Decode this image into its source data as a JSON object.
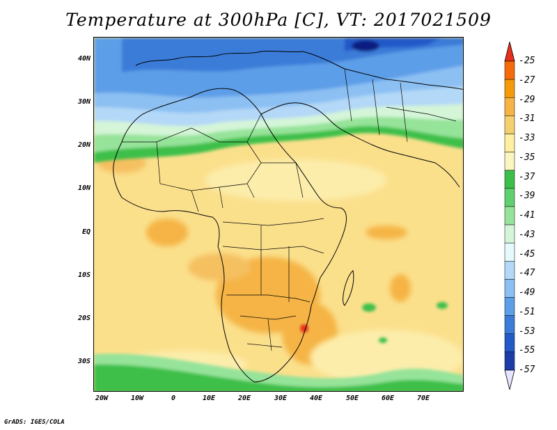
{
  "title": "Temperature at 300hPa [C], VT: 2017021509",
  "footer": "GrADS: IGES/COLA",
  "map": {
    "field": "Temperature at 300hPa",
    "unit": "C",
    "valid_time": "2017021509",
    "lon_range": [
      -25,
      80
    ],
    "lat_range": [
      -37,
      45
    ],
    "lat_ticks": [
      "40N",
      "30N",
      "20N",
      "10N",
      "EQ",
      "10S",
      "20S",
      "30S"
    ],
    "lat_tick_values": [
      40,
      30,
      20,
      10,
      0,
      -10,
      -20,
      -30
    ],
    "lon_ticks": [
      "20W",
      "10W",
      "0",
      "10E",
      "20E",
      "30E",
      "40E",
      "50E",
      "60E",
      "70E"
    ],
    "lon_tick_values": [
      -20,
      -10,
      0,
      10,
      20,
      30,
      40,
      50,
      60,
      70
    ],
    "features": [
      "coastlines",
      "country-borders"
    ]
  },
  "colorbar": {
    "labels": [
      "-25",
      "-27",
      "-29",
      "-31",
      "-33",
      "-35",
      "-37",
      "-39",
      "-41",
      "-43",
      "-45",
      "-47",
      "-49",
      "-51",
      "-53",
      "-55",
      "-57"
    ],
    "colors": [
      "#e8301a",
      "#f56a0a",
      "#f59a0a",
      "#f5b445",
      "#f5d070",
      "#fdf0a0",
      "#fbf6c0",
      "#3cbf4a",
      "#5fd070",
      "#96e39a",
      "#d4f5d8",
      "#e6fafc",
      "#b4d8f7",
      "#8cc0f3",
      "#5d9ee8",
      "#3b7cd8",
      "#2459c8",
      "#1c3ca8",
      "#101e80"
    ]
  }
}
